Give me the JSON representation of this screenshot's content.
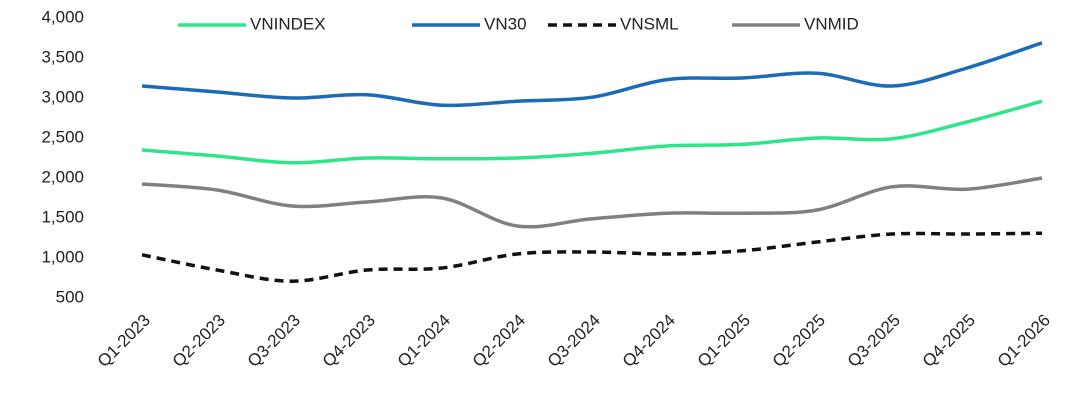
{
  "chart_data": {
    "type": "line",
    "categories": [
      "Q1-2023",
      "Q2-2023",
      "Q3-2023",
      "Q4-2023",
      "Q1-2024",
      "Q2-2024",
      "Q3-2024",
      "Q4-2024",
      "Q1-2025",
      "Q2-2025",
      "Q3-2025",
      "Q4-2025",
      "Q1-2026"
    ],
    "series": [
      {
        "name": "VNINDEX",
        "color": "#2ee58a",
        "dash": false,
        "values": [
          2350,
          2275,
          2190,
          2250,
          2240,
          2250,
          2310,
          2400,
          2420,
          2500,
          2490,
          2700,
          2960
        ]
      },
      {
        "name": "VN30",
        "color": "#1a6bb8",
        "dash": false,
        "values": [
          3150,
          3075,
          3000,
          3040,
          2910,
          2960,
          3010,
          3230,
          3250,
          3310,
          3150,
          3375,
          3690
        ]
      },
      {
        "name": "VNSML",
        "color": "#111111",
        "dash": true,
        "values": [
          1040,
          850,
          710,
          850,
          875,
          1050,
          1075,
          1050,
          1090,
          1200,
          1300,
          1300,
          1310
        ]
      },
      {
        "name": "VNMID",
        "color": "#808080",
        "dash": false,
        "values": [
          1925,
          1850,
          1650,
          1700,
          1750,
          1400,
          1490,
          1560,
          1560,
          1600,
          1890,
          1860,
          2000
        ]
      }
    ],
    "ylim": [
      500,
      4000
    ],
    "yticks": [
      {
        "value": 4000,
        "label": "4,000"
      },
      {
        "value": 3500,
        "label": "3,500"
      },
      {
        "value": 3000,
        "label": "3,000"
      },
      {
        "value": 2500,
        "label": "2,500"
      },
      {
        "value": 2000,
        "label": "2,000"
      },
      {
        "value": 1500,
        "label": "1,500"
      },
      {
        "value": 1000,
        "label": "1,000"
      },
      500
    ],
    "grid": false,
    "legend": "top"
  }
}
